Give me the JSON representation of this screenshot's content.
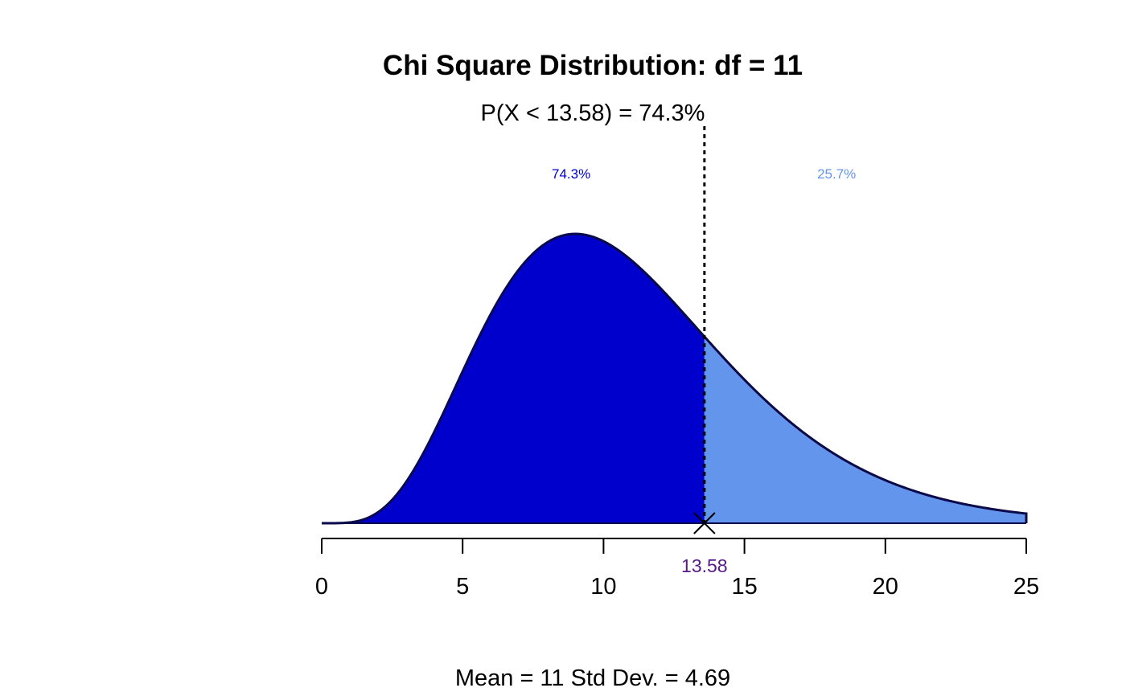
{
  "chart_data": {
    "type": "area",
    "distribution": "chi-square",
    "df": 11,
    "title": "Chi Square Distribution: df = 11",
    "subtitle": "P(X < 13.58) = 74.3%",
    "cutoff": 13.58,
    "cutoff_label": "13.58",
    "lower_pct_label": "74.3%",
    "upper_pct_label": "25.7%",
    "lower_probability": 0.743,
    "upper_probability": 0.257,
    "xlim": [
      0,
      25
    ],
    "x_ticks": [
      0,
      5,
      10,
      15,
      20,
      25
    ],
    "x_tick_labels": [
      "0",
      "5",
      "10",
      "15",
      "20",
      "25"
    ],
    "footer": "Mean = 11  Std Dev. = 4.69",
    "mean": 11,
    "sd": 4.69,
    "grid": false,
    "colors": {
      "lower_fill": "#0000CD",
      "upper_fill": "#6495ED",
      "curve": "#0A0A4A",
      "lower_label": "#0000CD",
      "upper_label": "#6495ED",
      "cutoff_label": "#551A8B",
      "axis": "#000000"
    }
  }
}
